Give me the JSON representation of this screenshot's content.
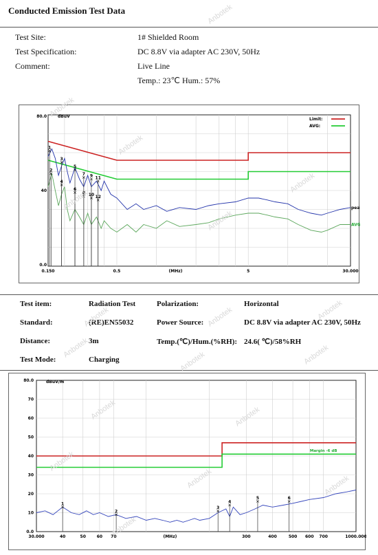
{
  "header": {
    "title": "Conducted Emission Test Data"
  },
  "conducted_info": [
    {
      "label": "Test Site:",
      "value": "1# Shielded Room"
    },
    {
      "label": "Test Specification:",
      "value": "DC 8.8V via adapter AC 230V, 50Hz"
    },
    {
      "label": "Comment:",
      "value": "Live Line"
    },
    {
      "label": "",
      "value": "Temp.: 23℃ Hum.: 57%"
    }
  ],
  "radiation_info": {
    "test_item_label": "Test item:",
    "test_item": "Radiation Test",
    "polarization_label": "Polarization:",
    "polarization": "Horizontal",
    "standard_label": "Standard:",
    "standard": "(RE)EN55032",
    "power_label": "Power Source:",
    "power": "DC 8.8V via adapter AC 230V, 50Hz",
    "distance_label": "Distance:",
    "distance": "3m",
    "temp_label": "Temp.(℃)/Hum.(%RH):",
    "temp": "24.6(   ℃)/58%RH",
    "mode_label": "Test Mode:",
    "mode": "Charging"
  },
  "watermark": "Anbotek",
  "chart_data": [
    {
      "type": "line",
      "xscale": "log",
      "xlim": [
        0.15,
        30
      ],
      "ylim": [
        0,
        80
      ],
      "ylabel": "dBuV",
      "xlabel": "(MHz)",
      "ytop_label": "80.0",
      "ybottom_label": "0.0",
      "ymid_label": "40",
      "xticks": [
        {
          "v": 0.15,
          "label": "0.150"
        },
        {
          "v": 0.5,
          "label": "0.5"
        },
        {
          "v": 1.4,
          "label": "(MHz)"
        },
        {
          "v": 5,
          "label": "5"
        },
        {
          "v": 30,
          "label": "30.000"
        }
      ],
      "legend": [
        {
          "name": "Limit:",
          "color": "#cc2222"
        },
        {
          "name": "AVG:",
          "color": "#22cc33"
        }
      ],
      "series_labels": {
        "peak": "peak",
        "avg": "AVG"
      },
      "limit_qp": [
        [
          0.15,
          66
        ],
        [
          0.5,
          56
        ],
        [
          5,
          56
        ],
        [
          5,
          60
        ],
        [
          30,
          60
        ]
      ],
      "limit_avg": [
        [
          0.15,
          56
        ],
        [
          0.5,
          46
        ],
        [
          5,
          46
        ],
        [
          5,
          50
        ],
        [
          30,
          50
        ]
      ],
      "peak_trace": [
        [
          0.15,
          58
        ],
        [
          0.16,
          62
        ],
        [
          0.17,
          57
        ],
        [
          0.18,
          48
        ],
        [
          0.19,
          53
        ],
        [
          0.2,
          57
        ],
        [
          0.21,
          50
        ],
        [
          0.22,
          44
        ],
        [
          0.24,
          52
        ],
        [
          0.26,
          46
        ],
        [
          0.28,
          42
        ],
        [
          0.3,
          48
        ],
        [
          0.32,
          42
        ],
        [
          0.35,
          45
        ],
        [
          0.38,
          40
        ],
        [
          0.4,
          45
        ],
        [
          0.45,
          38
        ],
        [
          0.5,
          36
        ],
        [
          0.6,
          30
        ],
        [
          0.7,
          33
        ],
        [
          0.8,
          30
        ],
        [
          1,
          32
        ],
        [
          1.2,
          29
        ],
        [
          1.5,
          31
        ],
        [
          2,
          30
        ],
        [
          2.5,
          32
        ],
        [
          3,
          33
        ],
        [
          4,
          34
        ],
        [
          5,
          36
        ],
        [
          6,
          36
        ],
        [
          7,
          35
        ],
        [
          8,
          34
        ],
        [
          10,
          33
        ],
        [
          12,
          30
        ],
        [
          15,
          28
        ],
        [
          18,
          27
        ],
        [
          20,
          28
        ],
        [
          25,
          30
        ],
        [
          30,
          31
        ]
      ],
      "avg_trace": [
        [
          0.15,
          42
        ],
        [
          0.16,
          49
        ],
        [
          0.17,
          40
        ],
        [
          0.18,
          32
        ],
        [
          0.19,
          38
        ],
        [
          0.2,
          42
        ],
        [
          0.21,
          30
        ],
        [
          0.22,
          24
        ],
        [
          0.24,
          30
        ],
        [
          0.26,
          26
        ],
        [
          0.28,
          22
        ],
        [
          0.3,
          28
        ],
        [
          0.32,
          22
        ],
        [
          0.35,
          26
        ],
        [
          0.38,
          20
        ],
        [
          0.4,
          24
        ],
        [
          0.45,
          20
        ],
        [
          0.5,
          18
        ],
        [
          0.6,
          22
        ],
        [
          0.7,
          18
        ],
        [
          0.8,
          22
        ],
        [
          1,
          20
        ],
        [
          1.2,
          24
        ],
        [
          1.5,
          21
        ],
        [
          2,
          22
        ],
        [
          2.5,
          23
        ],
        [
          3,
          25
        ],
        [
          4,
          27
        ],
        [
          5,
          28
        ],
        [
          6,
          28
        ],
        [
          7,
          27
        ],
        [
          8,
          26
        ],
        [
          10,
          25
        ],
        [
          12,
          22
        ],
        [
          15,
          19
        ],
        [
          18,
          18
        ],
        [
          20,
          19
        ],
        [
          25,
          22
        ],
        [
          30,
          22
        ]
      ],
      "markers": [
        {
          "label": "1",
          "x": 0.154,
          "y": 61
        },
        {
          "label": "2",
          "x": 0.158,
          "y": 49
        },
        {
          "label": "3",
          "x": 0.19,
          "y": 55
        },
        {
          "label": "4",
          "x": 0.19,
          "y": 43
        },
        {
          "label": "5",
          "x": 0.24,
          "y": 51
        },
        {
          "label": "6",
          "x": 0.24,
          "y": 39
        },
        {
          "label": "7",
          "x": 0.28,
          "y": 47
        },
        {
          "label": "8",
          "x": 0.28,
          "y": 37
        },
        {
          "label": "9",
          "x": 0.32,
          "y": 46
        },
        {
          "label": "10",
          "x": 0.32,
          "y": 36
        },
        {
          "label": "11",
          "x": 0.36,
          "y": 45
        },
        {
          "label": "12",
          "x": 0.36,
          "y": 35
        }
      ]
    },
    {
      "type": "line",
      "xscale": "log",
      "xlim": [
        30,
        1000
      ],
      "ylim": [
        0,
        80
      ],
      "ylabel": "dBuV/m",
      "xlabel": "(MHz)",
      "yticks": [
        {
          "v": 80,
          "label": "80.0"
        },
        {
          "v": 70,
          "label": "70"
        },
        {
          "v": 60,
          "label": "60"
        },
        {
          "v": 50,
          "label": "50"
        },
        {
          "v": 40,
          "label": "40"
        },
        {
          "v": 30,
          "label": "30"
        },
        {
          "v": 20,
          "label": "20"
        },
        {
          "v": 10,
          "label": "10"
        },
        {
          "v": 0,
          "label": "0.0"
        }
      ],
      "xticks": [
        {
          "v": 30,
          "label": "30.000"
        },
        {
          "v": 40,
          "label": "40"
        },
        {
          "v": 50,
          "label": "50"
        },
        {
          "v": 60,
          "label": "60"
        },
        {
          "v": 70,
          "label": "70"
        },
        {
          "v": 130,
          "label": "(MHz)"
        },
        {
          "v": 300,
          "label": "300"
        },
        {
          "v": 400,
          "label": "400"
        },
        {
          "v": 500,
          "label": "500"
        },
        {
          "v": 600,
          "label": "600"
        },
        {
          "v": 700,
          "label": "700"
        },
        {
          "v": 1000,
          "label": "1000.000"
        }
      ],
      "margin_label": "Margin -6 dB",
      "limit": [
        [
          30,
          40
        ],
        [
          230,
          40
        ],
        [
          230,
          47
        ],
        [
          1000,
          47
        ]
      ],
      "limit_margin": [
        [
          30,
          34
        ],
        [
          230,
          34
        ],
        [
          230,
          41
        ],
        [
          1000,
          41
        ]
      ],
      "trace": [
        [
          30,
          10
        ],
        [
          33,
          11
        ],
        [
          36,
          9
        ],
        [
          40,
          13
        ],
        [
          44,
          10
        ],
        [
          48,
          9
        ],
        [
          52,
          11
        ],
        [
          56,
          9
        ],
        [
          60,
          10
        ],
        [
          66,
          8
        ],
        [
          72,
          9
        ],
        [
          80,
          7
        ],
        [
          90,
          8
        ],
        [
          100,
          6
        ],
        [
          110,
          7
        ],
        [
          120,
          6
        ],
        [
          130,
          5
        ],
        [
          140,
          6
        ],
        [
          150,
          5
        ],
        [
          160,
          6
        ],
        [
          170,
          7
        ],
        [
          180,
          6
        ],
        [
          200,
          7
        ],
        [
          220,
          10
        ],
        [
          240,
          12
        ],
        [
          250,
          8
        ],
        [
          260,
          13
        ],
        [
          280,
          9
        ],
        [
          300,
          10
        ],
        [
          330,
          12
        ],
        [
          360,
          14
        ],
        [
          400,
          13
        ],
        [
          450,
          14
        ],
        [
          500,
          15
        ],
        [
          550,
          16
        ],
        [
          600,
          17
        ],
        [
          700,
          18
        ],
        [
          800,
          20
        ],
        [
          900,
          21
        ],
        [
          1000,
          22
        ]
      ],
      "markers": [
        {
          "label": "1",
          "x": 40,
          "y": 13
        },
        {
          "label": "2",
          "x": 72,
          "y": 9
        },
        {
          "label": "3",
          "x": 220,
          "y": 11
        },
        {
          "label": "4",
          "x": 250,
          "y": 14
        },
        {
          "label": "5",
          "x": 340,
          "y": 16
        },
        {
          "label": "6",
          "x": 480,
          "y": 16
        }
      ]
    }
  ]
}
